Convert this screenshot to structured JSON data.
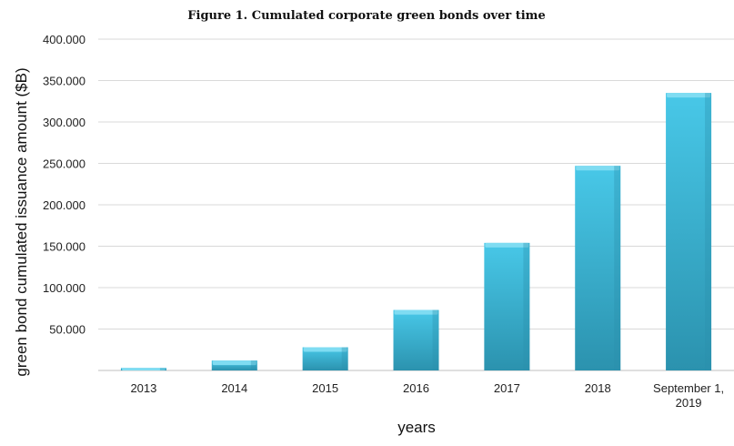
{
  "chart_data": {
    "type": "bar",
    "title": "Figure 1. Cumulated corporate green bonds over time",
    "xlabel": "years",
    "ylabel": "green bond cumulated issuance amount ($B)",
    "categories": [
      "2013",
      "2014",
      "2015",
      "2016",
      "2017",
      "2018",
      "September 1, 2019"
    ],
    "values": [
      3,
      12,
      28,
      73,
      154,
      247,
      335
    ],
    "ylim": [
      0,
      400
    ],
    "yticks": [
      "50.000",
      "100.000",
      "150.000",
      "200.000",
      "250.000",
      "300.000",
      "350.000",
      "400.000"
    ],
    "grid": true,
    "colors": {
      "bar_light": "#46c6e6",
      "bar_mid": "#36b6d6",
      "bar_dark": "#2a8fab",
      "bar_top": "#7fdcf2"
    }
  }
}
